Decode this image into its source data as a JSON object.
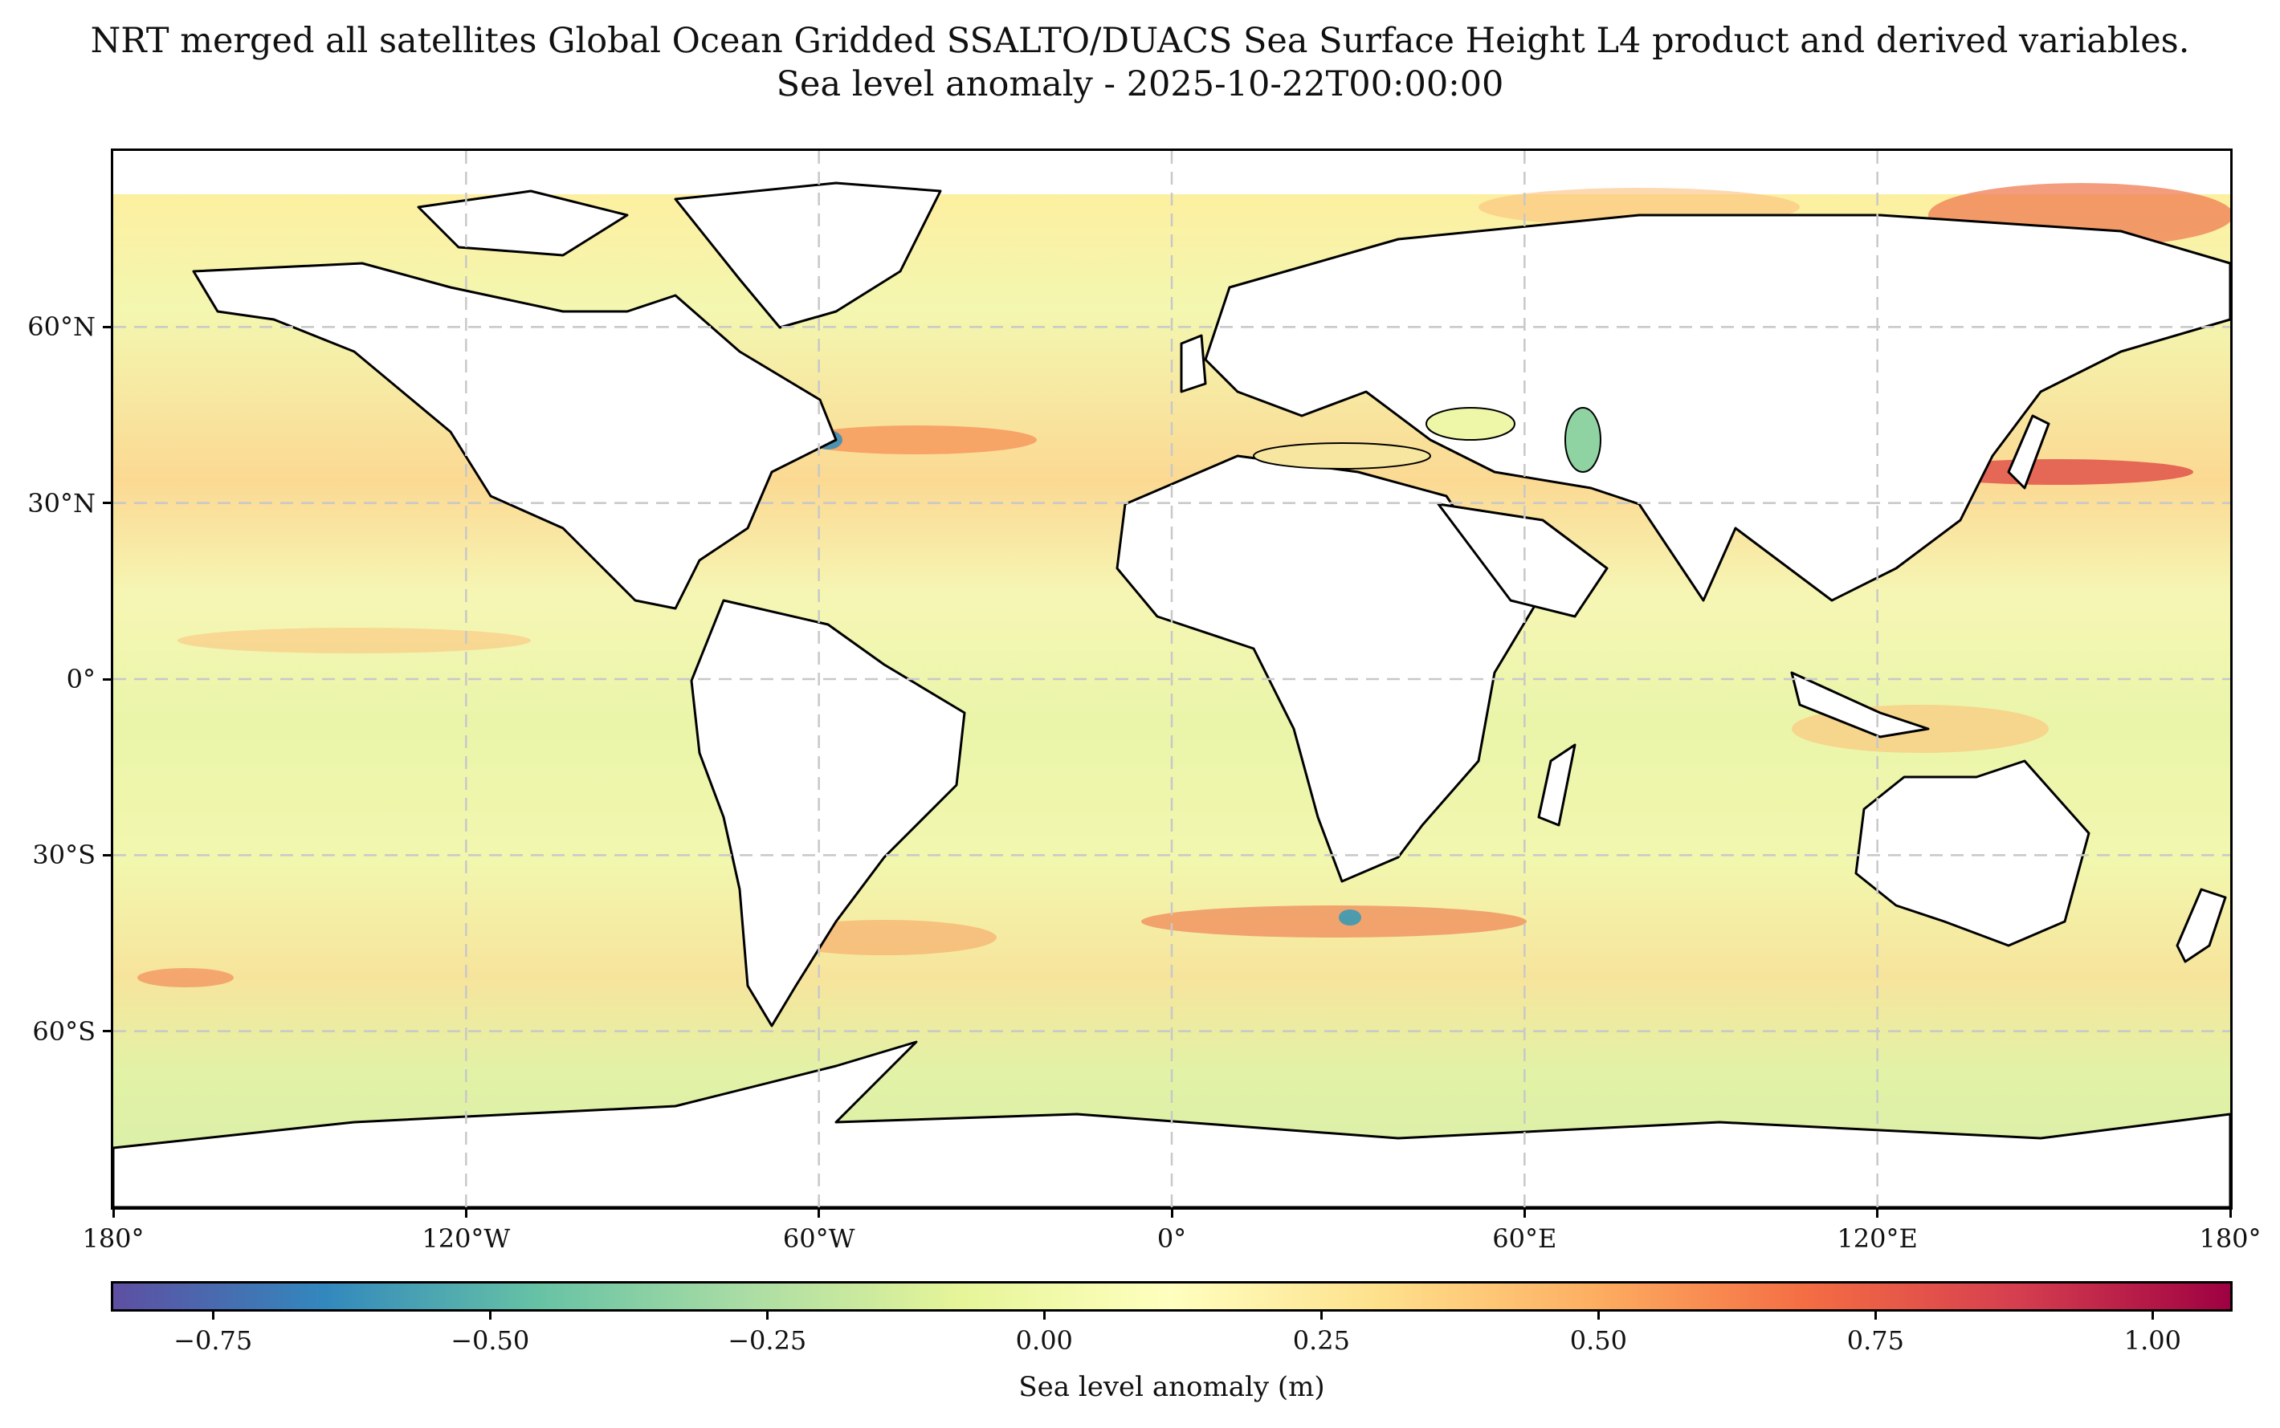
{
  "title": {
    "line1": "NRT merged all satellites Global Ocean Gridded SSALTO/DUACS Sea Surface Height L4 product and derived variables.",
    "line2": "Sea level anomaly - 2025-10-22T00:00:00"
  },
  "map": {
    "projection": "PlateCarree",
    "lon_range": [
      -180,
      180
    ],
    "lat_range": [
      -90,
      90
    ],
    "data_lat_extent": [
      -80,
      82
    ],
    "gridlines": true,
    "gridline_style": "dashed light gray",
    "land_color": "#ffffff",
    "coastline_color": "#000000",
    "x_ticks": [
      {
        "lon": -180,
        "label": "180°"
      },
      {
        "lon": -120,
        "label": "120°W"
      },
      {
        "lon": -60,
        "label": "60°W"
      },
      {
        "lon": 0,
        "label": "0°"
      },
      {
        "lon": 60,
        "label": "60°E"
      },
      {
        "lon": 120,
        "label": "120°E"
      },
      {
        "lon": 180,
        "label": "180°"
      }
    ],
    "y_ticks": [
      {
        "lat": 60,
        "label": "60°N"
      },
      {
        "lat": 30,
        "label": "30°N"
      },
      {
        "lat": 0,
        "label": "0°"
      },
      {
        "lat": -30,
        "label": "30°S"
      },
      {
        "lat": -60,
        "label": "60°S"
      }
    ]
  },
  "colorbar": {
    "label": "Sea level anomaly (m)",
    "colormap": "Spectral_r",
    "vmin": -0.84,
    "vmax": 1.07,
    "ticks": [
      {
        "value": -0.75,
        "label": "−0.75"
      },
      {
        "value": -0.5,
        "label": "−0.50"
      },
      {
        "value": -0.25,
        "label": "−0.25"
      },
      {
        "value": 0.0,
        "label": "0.00"
      },
      {
        "value": 0.25,
        "label": "0.25"
      },
      {
        "value": 0.5,
        "label": "0.50"
      },
      {
        "value": 0.75,
        "label": "0.75"
      },
      {
        "value": 1.0,
        "label": "1.00"
      }
    ],
    "colors": [
      "#5e4fa2",
      "#3288bd",
      "#66c2a5",
      "#abdda4",
      "#e6f598",
      "#ffffbf",
      "#fee08b",
      "#fdae61",
      "#f46d43",
      "#d53e4f",
      "#9e0142"
    ]
  }
}
